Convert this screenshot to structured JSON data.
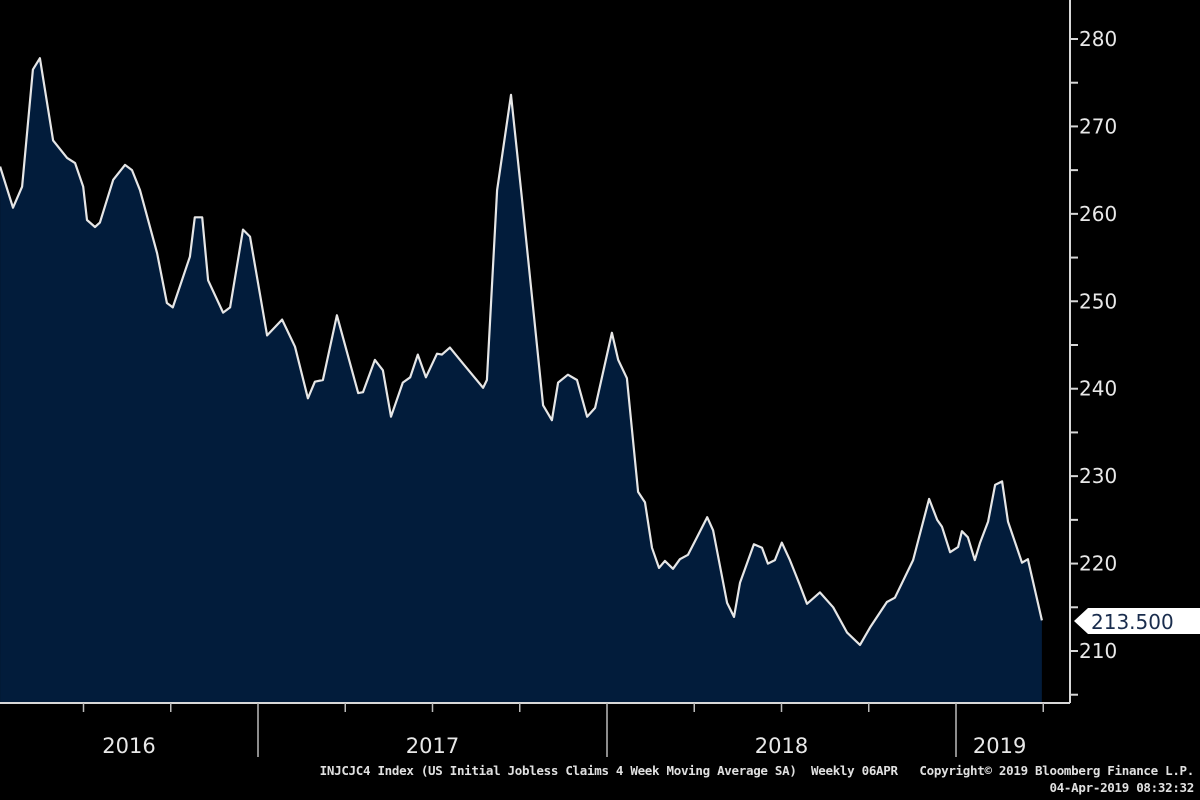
{
  "chart_data": {
    "type": "area",
    "title": "INJCJC4 Index (US Initial Jobless Claims 4 Week Moving Average SA)",
    "frequency": "Weekly 06APR",
    "copyright": "Copyright© 2019 Bloomberg Finance L.P.",
    "timestamp": "04-Apr-2019 08:32:32",
    "last_value_label": "213.500",
    "ylim": [
      204,
      283
    ],
    "y_ticks": [
      210,
      220,
      230,
      240,
      250,
      260,
      270,
      280
    ],
    "y_tick_labels": [
      "210",
      "220",
      "230",
      "240",
      "250",
      "260",
      "270",
      "280"
    ],
    "x_year_labels": [
      {
        "label": "2016",
        "start": 2016.0,
        "end": 2017.0
      },
      {
        "label": "2017",
        "start": 2017.0,
        "end": 2018.0
      },
      {
        "label": "2018",
        "start": 2018.0,
        "end": 2019.0
      },
      {
        "label": "2019",
        "start": 2019.0,
        "end": 2019.25
      }
    ],
    "grid": false,
    "axis_side": "right",
    "colors": {
      "background": "#000000",
      "fill": "#021c3b",
      "line": "#e6e6e6",
      "text": "#e8e8e8",
      "label_box": "#ffffff",
      "label_text": "#1a2d4d"
    },
    "x": [
      2016.261,
      2016.298,
      2016.324,
      2016.355,
      2016.375,
      2016.413,
      2016.453,
      2016.476,
      2016.499,
      2016.51,
      2016.533,
      2016.547,
      2016.585,
      2016.619,
      2016.639,
      2016.662,
      2016.711,
      2016.739,
      2016.756,
      2016.805,
      2016.819,
      2016.84,
      2016.857,
      2016.9,
      2016.92,
      2016.957,
      2016.977,
      2017.026,
      2017.069,
      2017.106,
      2017.143,
      2017.163,
      2017.186,
      2017.226,
      2017.287,
      2017.301,
      2017.335,
      2017.358,
      2017.381,
      2017.415,
      2017.436,
      2017.458,
      2017.481,
      2017.513,
      2017.527,
      2017.55,
      2017.587,
      2017.645,
      2017.656,
      2017.685,
      2017.725,
      2017.756,
      2017.817,
      2017.842,
      2017.86,
      2017.888,
      2017.914,
      2017.943,
      2017.966,
      2018.014,
      2018.032,
      2018.057,
      2018.089,
      2018.109,
      2018.129,
      2018.149,
      2018.166,
      2018.189,
      2018.209,
      2018.232,
      2018.258,
      2018.287,
      2018.304,
      2018.344,
      2018.364,
      2018.381,
      2018.421,
      2018.444,
      2018.461,
      2018.481,
      2018.501,
      2018.524,
      2018.553,
      2018.573,
      2018.61,
      2018.648,
      2018.688,
      2018.725,
      2018.754,
      2018.802,
      2018.825,
      2018.877,
      2018.923,
      2018.946,
      2018.96,
      2018.983,
      2019.006,
      2019.017,
      2019.034,
      2019.054,
      2019.069,
      2019.092,
      2019.112,
      2019.132,
      2019.149,
      2019.189,
      2019.206,
      2019.246
    ],
    "values": [
      265.4,
      260.7,
      263.1,
      276.5,
      277.8,
      268.4,
      266.4,
      265.8,
      263.1,
      259.3,
      258.5,
      259.0,
      263.9,
      265.6,
      265.0,
      262.7,
      255.5,
      249.8,
      249.3,
      255.1,
      259.6,
      259.6,
      252.4,
      248.7,
      249.3,
      258.2,
      257.4,
      246.1,
      247.9,
      244.8,
      238.9,
      240.8,
      241.0,
      248.4,
      239.5,
      239.6,
      243.3,
      242.1,
      236.8,
      240.7,
      241.3,
      243.9,
      241.3,
      244.0,
      243.9,
      244.7,
      242.9,
      240.1,
      241.0,
      262.7,
      273.6,
      261.9,
      238.1,
      236.4,
      240.7,
      241.6,
      241.0,
      236.8,
      237.8,
      246.4,
      243.3,
      241.2,
      228.2,
      227.0,
      221.8,
      219.5,
      220.3,
      219.4,
      220.5,
      221.0,
      223.0,
      225.3,
      223.8,
      215.5,
      213.9,
      217.8,
      222.2,
      221.8,
      220.0,
      220.4,
      222.4,
      220.4,
      217.5,
      215.4,
      216.7,
      215.0,
      212.1,
      210.7,
      212.7,
      215.6,
      216.1,
      220.4,
      227.4,
      225.0,
      224.2,
      221.3,
      221.9,
      223.7,
      223.0,
      220.4,
      222.4,
      224.8,
      229.0,
      229.4,
      224.8,
      220.1,
      220.5,
      213.5
    ]
  }
}
